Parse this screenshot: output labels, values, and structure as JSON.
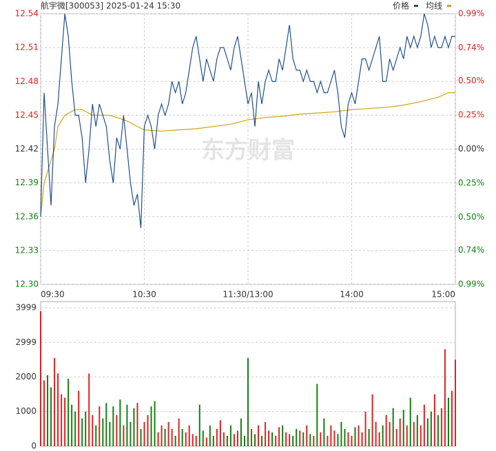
{
  "header": "航宇微[300053] 2025-01-24 15:30",
  "watermark": "东方财富",
  "chart_data": [
    {
      "type": "line",
      "xlim": [
        0,
        240
      ],
      "xticks": [
        {
          "value": 0,
          "label": "09:30"
        },
        {
          "value": 60,
          "label": "10:30"
        },
        {
          "value": 120,
          "label": "11:30/13:00"
        },
        {
          "value": 180,
          "label": "14:00"
        },
        {
          "value": 240,
          "label": "15:00"
        }
      ],
      "ylim": [
        12.3,
        12.54
      ],
      "yticks": [
        {
          "value": 12.3,
          "label": "12.30"
        },
        12.33,
        12.36,
        12.39,
        12.42,
        12.45,
        12.48,
        12.51,
        12.54
      ],
      "y2lim": [
        -0.99,
        0.99
      ],
      "y2ticks": [
        {
          "value": -0.99,
          "label": "0.99%"
        },
        {
          "value": -0.74,
          "label": "0.74%"
        },
        {
          "value": -0.5,
          "label": "0.50%"
        },
        {
          "value": -0.25,
          "label": "0.25%"
        },
        {
          "value": 0,
          "label": "0.00%"
        },
        {
          "value": 0.25,
          "label": "0.25%"
        },
        {
          "value": 0.5,
          "label": "0.50%"
        },
        {
          "value": 0.74,
          "label": "0.74%"
        },
        {
          "value": 0.99,
          "label": "0.99%"
        }
      ],
      "up_color": "#e02020",
      "down_color": "#108010",
      "flat_color": "#333333",
      "grid": true,
      "series": [
        {
          "name": "价格",
          "color": "#1f4e8c",
          "x": [
            0,
            2,
            4,
            6,
            8,
            10,
            12,
            14,
            16,
            18,
            20,
            22,
            24,
            26,
            28,
            30,
            32,
            34,
            36,
            38,
            40,
            42,
            44,
            46,
            48,
            50,
            52,
            54,
            56,
            58,
            60,
            62,
            64,
            66,
            68,
            70,
            72,
            74,
            76,
            78,
            80,
            82,
            84,
            86,
            88,
            90,
            92,
            94,
            96,
            98,
            100,
            102,
            104,
            106,
            108,
            110,
            112,
            114,
            116,
            118,
            120,
            122,
            124,
            126,
            128,
            130,
            132,
            134,
            136,
            138,
            140,
            142,
            144,
            146,
            148,
            150,
            152,
            154,
            156,
            158,
            160,
            162,
            164,
            166,
            168,
            170,
            172,
            174,
            176,
            178,
            180,
            182,
            184,
            186,
            188,
            190,
            192,
            194,
            196,
            198,
            200,
            202,
            204,
            206,
            208,
            210,
            212,
            214,
            216,
            218,
            220,
            222,
            224,
            226,
            228,
            230,
            232,
            234,
            236,
            238,
            240
          ],
          "values": [
            12.36,
            12.47,
            12.42,
            12.37,
            12.44,
            12.46,
            12.5,
            12.54,
            12.52,
            12.48,
            12.45,
            12.45,
            12.43,
            12.39,
            12.42,
            12.46,
            12.44,
            12.46,
            12.45,
            12.44,
            12.41,
            12.39,
            12.43,
            12.42,
            12.45,
            12.42,
            12.39,
            12.37,
            12.38,
            12.35,
            12.44,
            12.45,
            12.44,
            12.42,
            12.45,
            12.46,
            12.45,
            12.46,
            12.48,
            12.47,
            12.48,
            12.46,
            12.47,
            12.49,
            12.51,
            12.52,
            12.5,
            12.48,
            12.5,
            12.49,
            12.48,
            12.5,
            12.51,
            12.51,
            12.5,
            12.49,
            12.51,
            12.52,
            12.5,
            12.48,
            12.46,
            12.47,
            12.44,
            12.48,
            12.46,
            12.48,
            12.49,
            12.48,
            12.48,
            12.5,
            12.49,
            12.51,
            12.53,
            12.5,
            12.49,
            12.49,
            12.48,
            12.49,
            12.48,
            12.48,
            12.47,
            12.48,
            12.47,
            12.47,
            12.48,
            12.49,
            12.47,
            12.44,
            12.43,
            12.46,
            12.47,
            12.46,
            12.48,
            12.5,
            12.5,
            12.49,
            12.5,
            12.51,
            12.52,
            12.48,
            12.48,
            12.5,
            12.49,
            12.5,
            12.51,
            12.5,
            12.52,
            12.51,
            12.52,
            12.51,
            12.52,
            12.54,
            12.53,
            12.51,
            12.52,
            12.51,
            12.51,
            12.52,
            12.51,
            12.52,
            12.52
          ]
        },
        {
          "name": "均线",
          "color": "#d4a017",
          "x": [
            0,
            2,
            4,
            6,
            8,
            10,
            14,
            20,
            24,
            30,
            40,
            50,
            56,
            60,
            70,
            80,
            90,
            100,
            110,
            120,
            130,
            140,
            150,
            160,
            170,
            180,
            190,
            200,
            210,
            220,
            230,
            236,
            240
          ],
          "values": [
            12.36,
            12.39,
            12.4,
            12.41,
            12.42,
            12.44,
            12.45,
            12.455,
            12.455,
            12.45,
            12.45,
            12.445,
            12.44,
            12.437,
            12.436,
            12.437,
            12.438,
            12.44,
            12.442,
            12.446,
            12.448,
            12.449,
            12.451,
            12.452,
            12.453,
            12.455,
            12.456,
            12.457,
            12.459,
            12.462,
            12.466,
            12.47,
            12.47
          ]
        }
      ]
    },
    {
      "type": "bar",
      "xlim": [
        0,
        240
      ],
      "ylim": [
        0,
        3999
      ],
      "yticks": [
        0,
        1000,
        2000,
        2999,
        3999
      ],
      "grid": true,
      "up_color": "#e02020",
      "down_color": "#108010",
      "x": [
        0,
        2,
        4,
        6,
        8,
        10,
        12,
        14,
        16,
        18,
        20,
        22,
        24,
        26,
        28,
        30,
        32,
        34,
        36,
        38,
        40,
        42,
        44,
        46,
        48,
        50,
        52,
        54,
        56,
        58,
        60,
        62,
        64,
        66,
        68,
        70,
        72,
        74,
        76,
        78,
        80,
        82,
        84,
        86,
        88,
        90,
        92,
        94,
        96,
        98,
        100,
        102,
        104,
        106,
        108,
        110,
        112,
        114,
        116,
        118,
        120,
        122,
        124,
        126,
        128,
        130,
        132,
        134,
        136,
        138,
        140,
        142,
        144,
        146,
        148,
        150,
        152,
        154,
        156,
        158,
        160,
        162,
        164,
        166,
        168,
        170,
        172,
        174,
        176,
        178,
        180,
        182,
        184,
        186,
        188,
        190,
        192,
        194,
        196,
        198,
        200,
        202,
        204,
        206,
        208,
        210,
        212,
        214,
        216,
        218,
        220,
        222,
        224,
        226,
        228,
        230,
        232,
        234,
        236,
        238,
        240
      ],
      "values": [
        3900,
        1900,
        2050,
        1700,
        2550,
        2100,
        1500,
        1400,
        1950,
        1200,
        1000,
        1600,
        800,
        1000,
        2100,
        900,
        600,
        1150,
        800,
        1250,
        700,
        1150,
        900,
        1350,
        600,
        1200,
        700,
        1100,
        1250,
        500,
        700,
        900,
        1150,
        1300,
        400,
        600,
        500,
        700,
        500,
        300,
        800,
        500,
        400,
        600,
        350,
        300,
        1200,
        450,
        250,
        600,
        300,
        500,
        750,
        400,
        300,
        600,
        350,
        450,
        800,
        300,
        2550,
        500,
        350,
        600,
        300,
        700,
        450,
        400,
        300,
        550,
        600,
        400,
        350,
        300,
        500,
        450,
        400,
        600,
        350,
        300,
        1800,
        400,
        800,
        300,
        600,
        450,
        350,
        700,
        500,
        400,
        300,
        550,
        600,
        400,
        1000,
        500,
        1500,
        700,
        400,
        600,
        900,
        700,
        1100,
        500,
        800,
        1050,
        600,
        1400,
        700,
        900,
        600,
        1200,
        800,
        1000,
        1500,
        900,
        1100,
        2800,
        1400,
        1600,
        2500
      ]
    }
  ]
}
